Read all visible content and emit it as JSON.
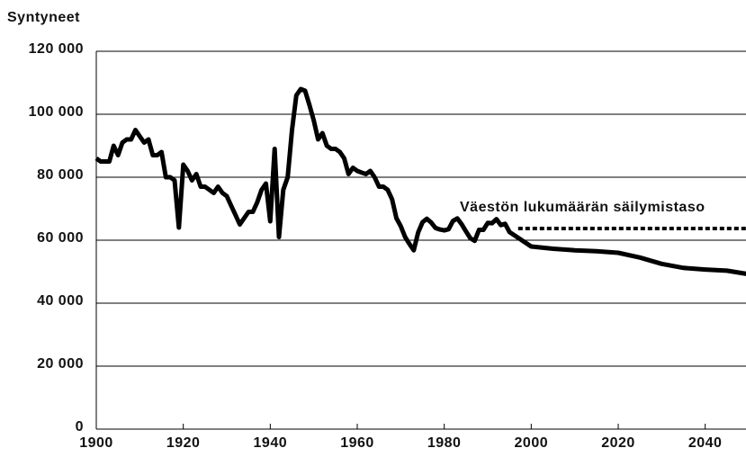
{
  "chart_data": {
    "type": "line",
    "y_label": "Syntyneet",
    "xlim": [
      1900,
      2050
    ],
    "ylim": [
      0,
      120000
    ],
    "xticks": [
      1900,
      1920,
      1940,
      1960,
      1980,
      2000,
      2020,
      2040
    ],
    "yticks": [
      {
        "value": 0,
        "label": "0"
      },
      {
        "value": 20000,
        "label": "20 000"
      },
      {
        "value": 40000,
        "label": "40 000"
      },
      {
        "value": 60000,
        "label": "60 000"
      },
      {
        "value": 80000,
        "label": "80 000"
      },
      {
        "value": 100000,
        "label": "100 000"
      },
      {
        "value": 120000,
        "label": "120 000"
      }
    ],
    "grid": true,
    "series": [
      {
        "color": "#000000",
        "dashed": false,
        "x": [
          1900,
          1901,
          1902,
          1903,
          1904,
          1905,
          1906,
          1907,
          1908,
          1909,
          1910,
          1911,
          1912,
          1913,
          1914,
          1915,
          1916,
          1917,
          1918,
          1919,
          1920,
          1921,
          1922,
          1923,
          1924,
          1925,
          1926,
          1927,
          1928,
          1929,
          1930,
          1931,
          1932,
          1933,
          1934,
          1935,
          1936,
          1937,
          1938,
          1939,
          1940,
          1941,
          1942,
          1943,
          1944,
          1945,
          1946,
          1947,
          1948,
          1949,
          1950,
          1951,
          1952,
          1953,
          1954,
          1955,
          1956,
          1957,
          1958,
          1959,
          1960,
          1961,
          1962,
          1963,
          1964,
          1965,
          1966,
          1967,
          1968,
          1969,
          1970,
          1971,
          1972,
          1973,
          1974,
          1975,
          1976,
          1977,
          1978,
          1979,
          1980,
          1981,
          1982,
          1983,
          1984,
          1985,
          1986,
          1987,
          1988,
          1989,
          1990,
          1991,
          1992,
          1993,
          1994,
          1995,
          2000,
          2005,
          2010,
          2015,
          2020,
          2025,
          2030,
          2035,
          2040,
          2045,
          2050
        ],
        "values": [
          86000,
          85000,
          85000,
          85000,
          90000,
          87000,
          91000,
          92000,
          92000,
          95000,
          93000,
          91000,
          92000,
          87000,
          87000,
          88000,
          80000,
          80000,
          79000,
          64000,
          84000,
          82000,
          79000,
          81000,
          77000,
          77000,
          76000,
          75000,
          77000,
          75000,
          74000,
          71000,
          68000,
          65000,
          67000,
          69000,
          69000,
          72000,
          76000,
          78000,
          66000,
          89000,
          61000,
          76000,
          80000,
          95000,
          106000,
          108000,
          107500,
          103000,
          98000,
          92000,
          94000,
          90000,
          89000,
          89000,
          88000,
          86000,
          81000,
          83000,
          82000,
          81500,
          81000,
          82000,
          80000,
          77000,
          77000,
          76000,
          73000,
          67000,
          64500,
          61000,
          58800,
          56800,
          62500,
          65700,
          66800,
          65600,
          63900,
          63400,
          63100,
          63500,
          66100,
          66900,
          65100,
          62800,
          60600,
          59800,
          63300,
          63300,
          65500,
          65400,
          66700,
          64800,
          65200,
          62600,
          58000,
          57300,
          56800,
          56500,
          56000,
          54500,
          52500,
          51200,
          50700,
          50300,
          49200
        ]
      },
      {
        "name": "Väestön lukumäärän säilymistaso",
        "color": "#000000",
        "dashed": true,
        "x": [
          1997,
          2050
        ],
        "values": [
          63700,
          63700
        ]
      }
    ]
  }
}
